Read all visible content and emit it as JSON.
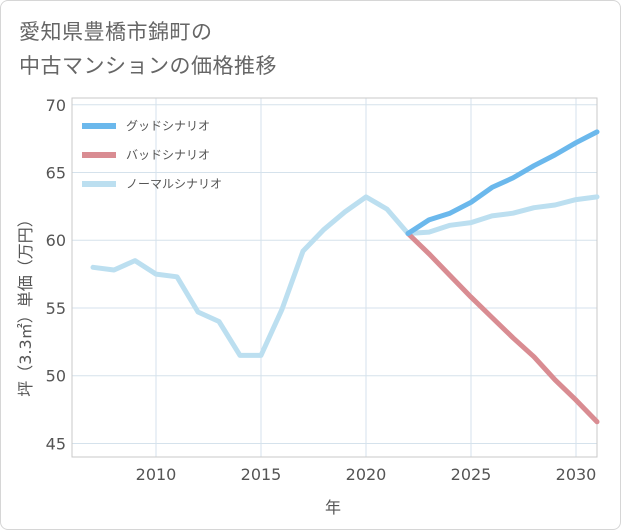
{
  "title_lines": [
    "愛知県豊橋市錦町の",
    "中古マンションの価格推移"
  ],
  "chart_data": {
    "type": "line",
    "xlabel": "年",
    "ylabel": "坪（3.3㎡）単価（万円）",
    "xlim": [
      2006,
      2031
    ],
    "ylim": [
      44,
      70.5
    ],
    "xticks": [
      2010,
      2015,
      2020,
      2025,
      2030
    ],
    "yticks": [
      45,
      50,
      55,
      60,
      65,
      70
    ],
    "grid": true,
    "legend_position": "top-left",
    "series": [
      {
        "name": "グッドシナリオ",
        "color": "#6bb8ec",
        "x": [
          2022,
          2023,
          2024,
          2025,
          2026,
          2027,
          2028,
          2029,
          2030,
          2031
        ],
        "y": [
          60.5,
          61.5,
          62.0,
          62.8,
          63.9,
          64.6,
          65.5,
          66.3,
          67.2,
          68.0
        ]
      },
      {
        "name": "バッドシナリオ",
        "color": "#d98c92",
        "x": [
          2022,
          2023,
          2024,
          2025,
          2026,
          2027,
          2028,
          2029,
          2030,
          2031
        ],
        "y": [
          60.5,
          59.0,
          57.4,
          55.8,
          54.3,
          52.8,
          51.4,
          49.7,
          48.2,
          46.6
        ]
      },
      {
        "name": "ノーマルシナリオ",
        "color": "#bcdff0",
        "x": [
          2007,
          2008,
          2009,
          2010,
          2011,
          2012,
          2013,
          2014,
          2015,
          2016,
          2017,
          2018,
          2019,
          2020,
          2021,
          2022,
          2023,
          2024,
          2025,
          2026,
          2027,
          2028,
          2029,
          2030,
          2031
        ],
        "y": [
          58.0,
          57.8,
          58.5,
          57.5,
          57.3,
          54.7,
          54.0,
          51.5,
          51.5,
          54.9,
          59.2,
          60.8,
          62.1,
          63.2,
          62.3,
          60.5,
          60.6,
          61.1,
          61.3,
          61.8,
          62.0,
          62.4,
          62.6,
          63.0,
          63.2
        ]
      }
    ]
  }
}
